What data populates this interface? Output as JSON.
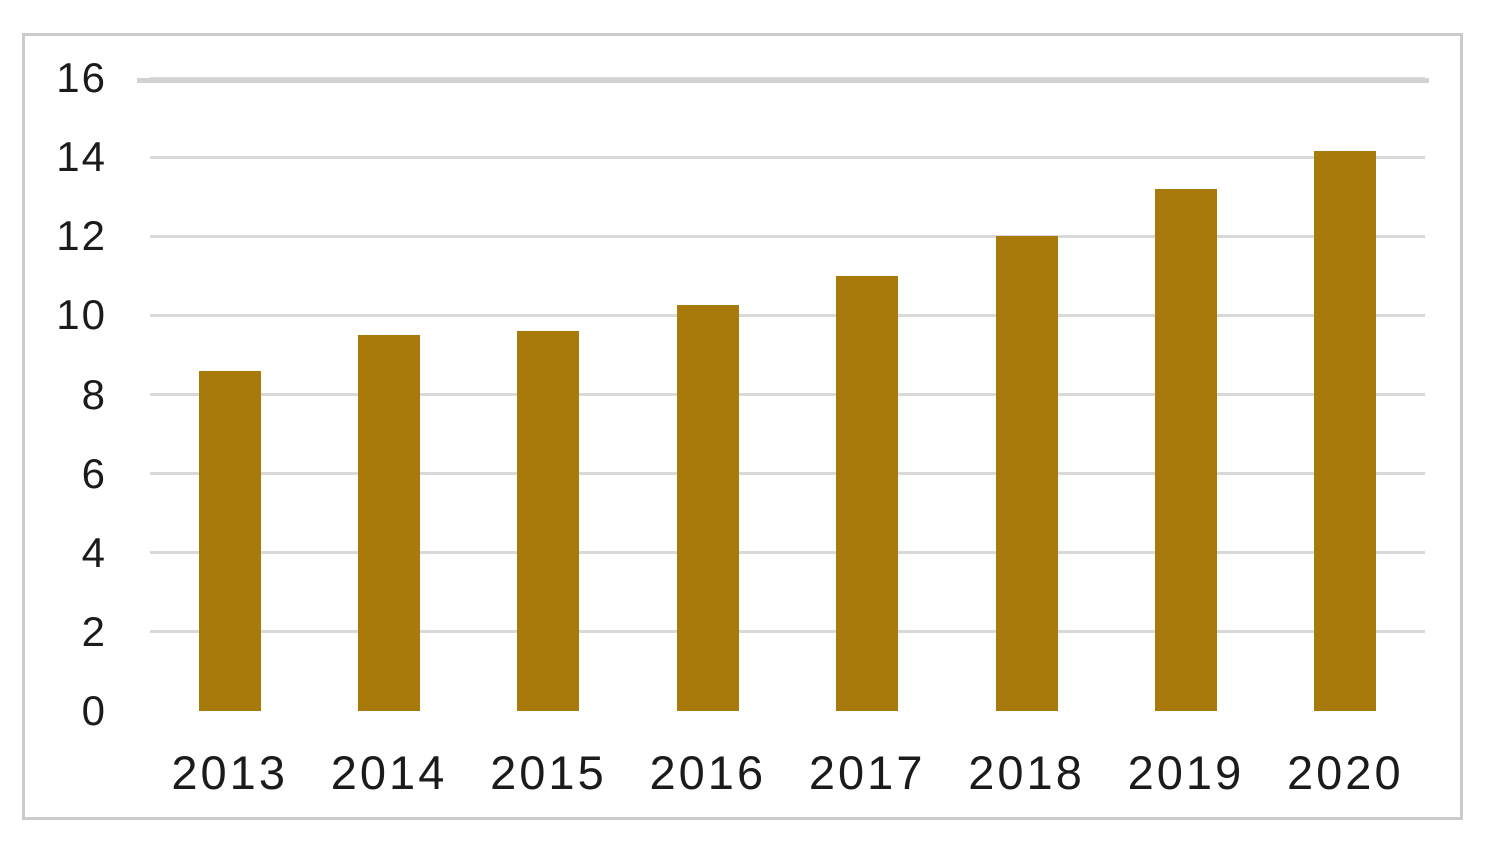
{
  "chart_data": {
    "type": "bar",
    "categories": [
      "2013",
      "2014",
      "2015",
      "2016",
      "2017",
      "2018",
      "2019",
      "2020"
    ],
    "values": [
      8.6,
      9.5,
      9.6,
      10.25,
      11.0,
      12.0,
      13.2,
      14.15
    ],
    "title": "",
    "xlabel": "",
    "ylabel": "",
    "ylim": [
      0,
      16
    ],
    "yticks": [
      0,
      2,
      4,
      6,
      8,
      10,
      12,
      14,
      16
    ],
    "grid": true,
    "legend": "none",
    "bar_color": "#a87a0c",
    "gridline_color": "#d9d9d9",
    "axis_line_color": "#d2d2d2",
    "frame_border_color": "#cbcbcb",
    "background_color": "#ffffff",
    "text_color": "#1b1b1b"
  }
}
